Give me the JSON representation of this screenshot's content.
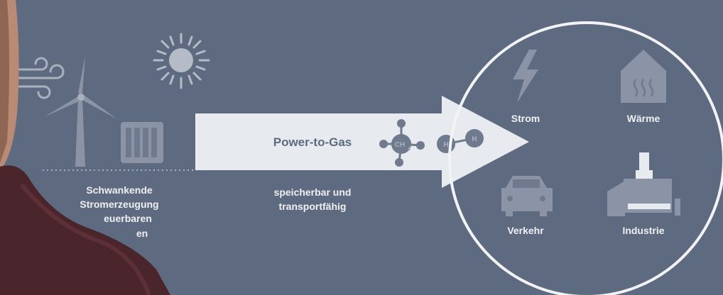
{
  "source": {
    "lines": [
      "Schwankende",
      "Stromerzeugung",
      "euerbaren",
      "en"
    ]
  },
  "arrow": {
    "label": "Power-to-Gas",
    "methane": {
      "symbol": "CH",
      "subscript": "4"
    },
    "hydrogen": [
      "H",
      "H"
    ]
  },
  "caption": [
    "speicherbar und",
    "transportfähig"
  ],
  "sectors": [
    "Strom",
    "Wärme",
    "Verkehr",
    "Industrie"
  ]
}
